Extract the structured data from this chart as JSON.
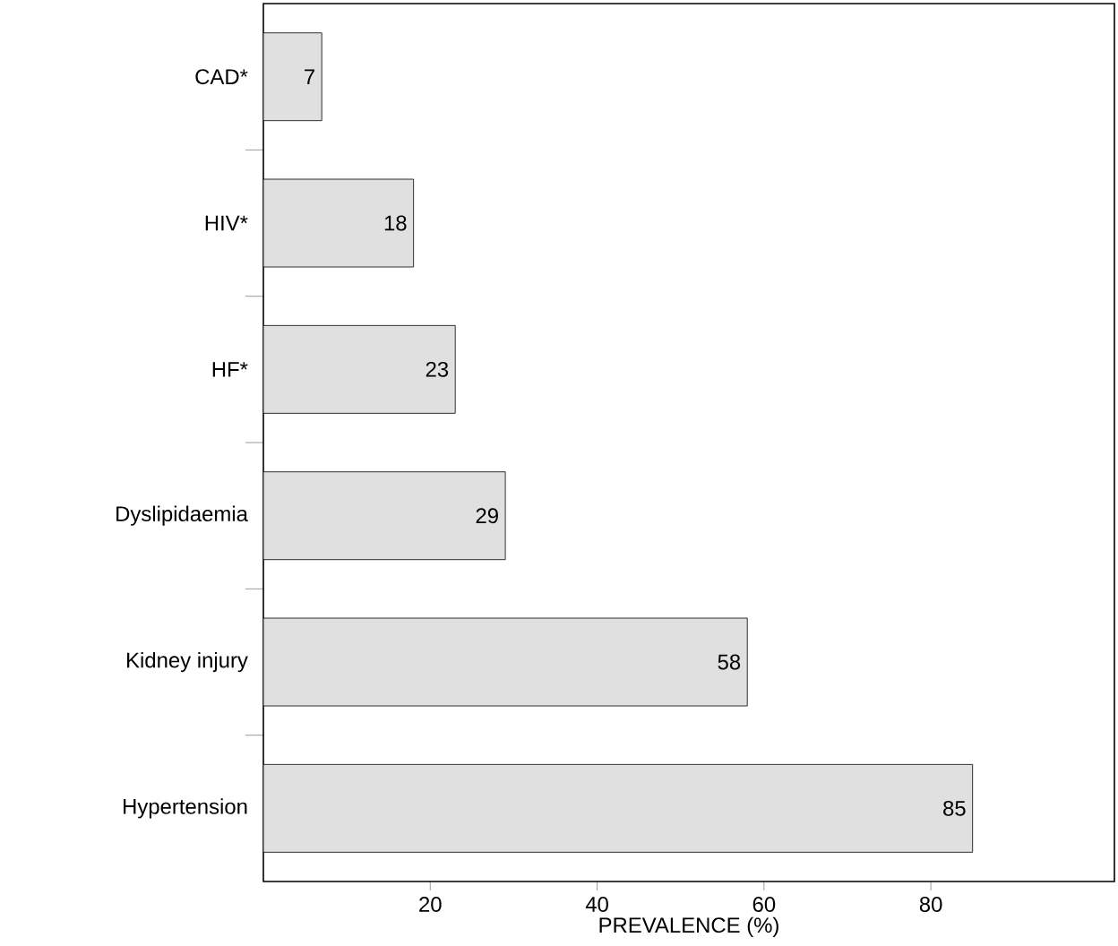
{
  "chart_data": {
    "type": "bar",
    "orientation": "horizontal",
    "xlabel": "PREVALENCE (%)",
    "categories": [
      "CAD*",
      "HIV*",
      "HF*",
      "Dyslipidaemia",
      "Kidney injury",
      "Hypertension"
    ],
    "values": [
      7,
      18,
      23,
      29,
      58,
      85
    ],
    "color": "#e0e0e0",
    "xlim": [
      0,
      102
    ],
    "xticks": [
      20,
      40,
      60,
      80
    ],
    "data_labels": true,
    "grid": false
  }
}
